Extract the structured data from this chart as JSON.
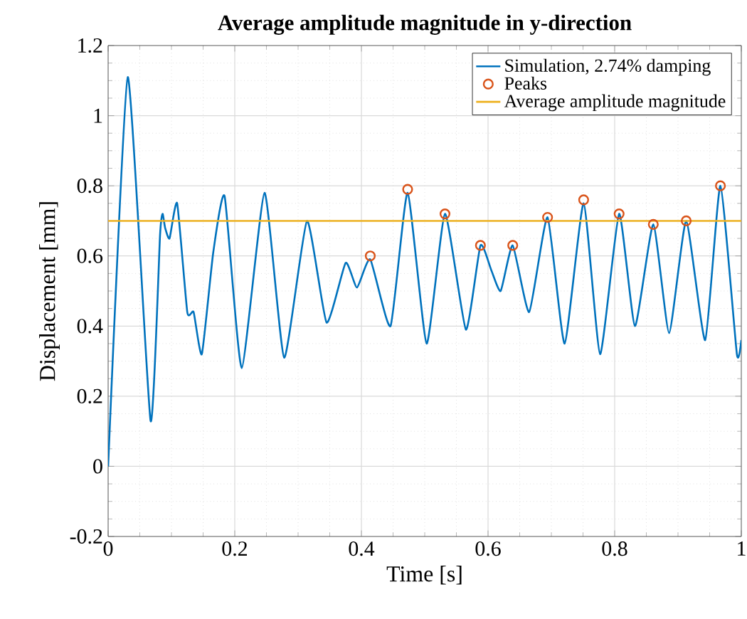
{
  "chart_data": {
    "type": "line",
    "title": "Average amplitude magnitude in y-direction",
    "xlabel": "Time [s]",
    "ylabel": "Displacement [mm]",
    "xlim": [
      0,
      1
    ],
    "ylim": [
      -0.2,
      1.2
    ],
    "xticks": [
      0,
      0.2,
      0.4,
      0.6,
      0.8,
      1
    ],
    "yticks": [
      -0.2,
      0,
      0.2,
      0.4,
      0.6,
      0.8,
      1,
      1.2
    ],
    "grid": true,
    "legend": "top right",
    "series": [
      {
        "name": "Simulation, 2.74% damping",
        "type": "line",
        "color": "#0072bd",
        "marker": "none",
        "x": [
          0,
          0.031,
          0.067,
          0.082,
          0.086,
          0.09,
          0.097,
          0.109,
          0.125,
          0.135,
          0.148,
          0.166,
          0.184,
          0.211,
          0.247,
          0.278,
          0.314,
          0.345,
          0.375,
          0.393,
          0.414,
          0.446,
          0.473,
          0.503,
          0.532,
          0.565,
          0.588,
          0.605,
          0.62,
          0.639,
          0.665,
          0.694,
          0.721,
          0.751,
          0.777,
          0.807,
          0.832,
          0.861,
          0.886,
          0.913,
          0.943,
          0.967,
          0.993,
          1
        ],
        "values": [
          0,
          1.11,
          0.13,
          0.66,
          0.72,
          0.68,
          0.65,
          0.75,
          0.44,
          0.44,
          0.32,
          0.61,
          0.77,
          0.28,
          0.78,
          0.31,
          0.7,
          0.41,
          0.58,
          0.51,
          0.59,
          0.4,
          0.78,
          0.35,
          0.72,
          0.39,
          0.63,
          0.56,
          0.5,
          0.63,
          0.44,
          0.71,
          0.35,
          0.75,
          0.32,
          0.72,
          0.4,
          0.69,
          0.38,
          0.7,
          0.36,
          0.8,
          0.32,
          0.36
        ]
      },
      {
        "name": "Peaks",
        "type": "scatter",
        "color": "#d95319",
        "marker": "circle",
        "x": [
          0.414,
          0.473,
          0.532,
          0.588,
          0.639,
          0.694,
          0.751,
          0.807,
          0.861,
          0.913,
          0.967
        ],
        "values": [
          0.6,
          0.79,
          0.72,
          0.63,
          0.63,
          0.71,
          0.76,
          0.72,
          0.69,
          0.7,
          0.8
        ]
      },
      {
        "name": "Average amplitude magnitude",
        "type": "line",
        "color": "#edb120",
        "marker": "none",
        "x": [
          0,
          1
        ],
        "values": [
          0.7,
          0.7
        ]
      }
    ]
  }
}
